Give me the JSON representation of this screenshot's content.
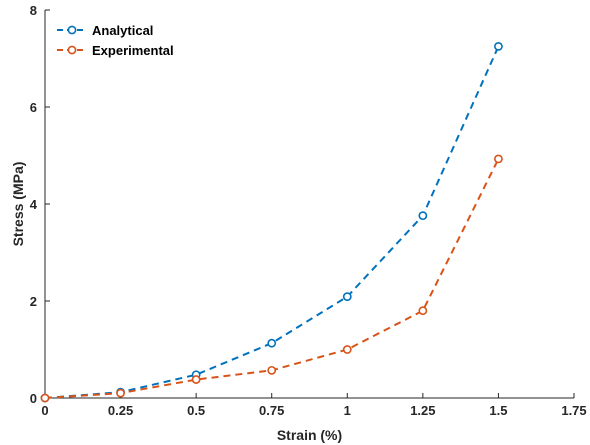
{
  "chart_data": {
    "type": "line",
    "xlabel": "Strain (%)",
    "ylabel": "Stress (MPa)",
    "xlim": [
      0,
      1.75
    ],
    "ylim": [
      0,
      8
    ],
    "x_ticks": [
      "0",
      "0.25",
      "0.5",
      "0.75",
      "1",
      "1.25",
      "1.5",
      "1.75"
    ],
    "x_tick_values": [
      0,
      0.25,
      0.5,
      0.75,
      1,
      1.25,
      1.5,
      1.75
    ],
    "y_ticks": [
      "0",
      "2",
      "4",
      "6",
      "8"
    ],
    "y_tick_values": [
      0,
      2,
      4,
      6,
      8
    ],
    "grid": false,
    "legend_position": "top-left",
    "series": [
      {
        "name": "Analytical",
        "color": "#0072BD",
        "line_style": "dashed",
        "marker": "circle",
        "x": [
          0,
          0.25,
          0.5,
          0.75,
          1,
          1.25,
          1.5
        ],
        "y": [
          0,
          0.12,
          0.48,
          1.13,
          2.09,
          3.76,
          7.25
        ]
      },
      {
        "name": "Experimental",
        "color": "#D95319",
        "line_style": "dashed",
        "marker": "circle",
        "x": [
          0,
          0.25,
          0.5,
          0.75,
          1,
          1.25,
          1.5
        ],
        "y": [
          0,
          0.1,
          0.38,
          0.57,
          1.0,
          1.8,
          4.93
        ]
      }
    ]
  }
}
